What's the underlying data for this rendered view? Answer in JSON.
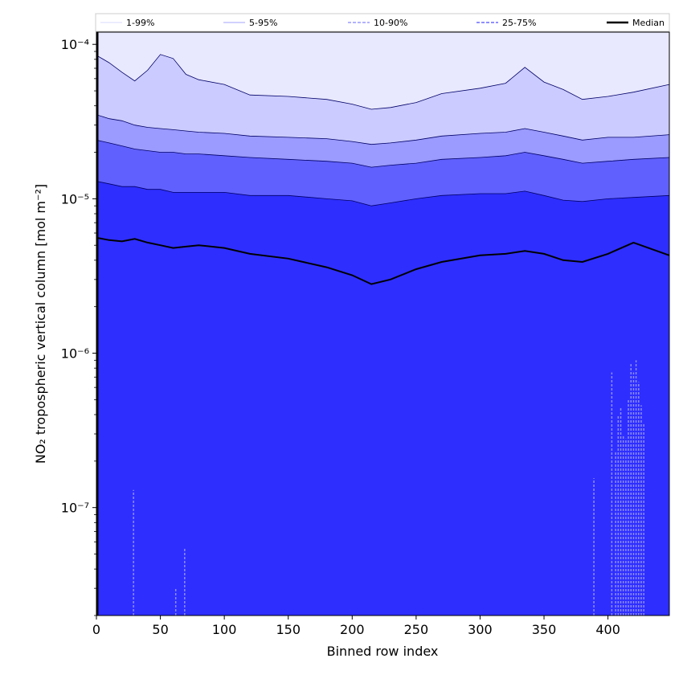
{
  "chart_data": {
    "type": "area",
    "xlabel": "Binned row index",
    "ylabel": "NO₂ tropospheric vertical column [mol m⁻²]",
    "xlim": [
      0,
      448
    ],
    "ylim": [
      2e-08,
      0.00012
    ],
    "yscale": "log",
    "grid": false,
    "legend_position": "top",
    "x_ticks": [
      0,
      50,
      100,
      150,
      200,
      250,
      300,
      350,
      400
    ],
    "x_tick_labels": [
      "0",
      "50",
      "100",
      "150",
      "200",
      "250",
      "300",
      "350",
      "400"
    ],
    "y_ticks": [
      1e-07,
      1e-06,
      1e-05,
      0.0001
    ],
    "y_tick_labels": [
      "10⁻⁷",
      "10⁻⁶",
      "10⁻⁵",
      "10⁻⁴"
    ],
    "legend": [
      {
        "label": "1-99%",
        "color": "#e6e6ff",
        "dash": "solid"
      },
      {
        "label": "5-95%",
        "color": "#c2c2ff",
        "dash": "solid"
      },
      {
        "label": "10-90%",
        "color": "#9898ff",
        "dash": "dashed"
      },
      {
        "label": "25-75%",
        "color": "#6a6aff",
        "dash": "dashed"
      },
      {
        "label": "Median",
        "color": "#000000",
        "dash": "solid"
      }
    ],
    "band_colors": [
      "#cbcbff",
      "#9a9aff",
      "#6060ff",
      "#2e2eff"
    ],
    "x": [
      0,
      10,
      20,
      30,
      40,
      50,
      60,
      70,
      80,
      100,
      120,
      150,
      180,
      200,
      215,
      230,
      250,
      270,
      300,
      320,
      335,
      350,
      365,
      380,
      400,
      420,
      448
    ],
    "series": [
      {
        "name": "1-99%",
        "lower": 2e-08,
        "upper": 0.00012
      },
      {
        "name": "5-95%",
        "upper": [
          8.5e-05,
          7.6e-05,
          6.6e-05,
          5.8e-05,
          6.8e-05,
          8.6e-05,
          8.1e-05,
          6.4e-05,
          5.9e-05,
          5.5e-05,
          4.7e-05,
          4.6e-05,
          4.4e-05,
          4.1e-05,
          3.8e-05,
          3.9e-05,
          4.2e-05,
          4.8e-05,
          5.2e-05,
          5.6e-05,
          7.1e-05,
          5.7e-05,
          5.1e-05,
          4.4e-05,
          4.6e-05,
          4.9e-05,
          5.5e-05
        ]
      },
      {
        "name": "10-90%",
        "upper": [
          3.5e-05,
          3.3e-05,
          3.2e-05,
          3e-05,
          2.9e-05,
          2.85e-05,
          2.8e-05,
          2.75e-05,
          2.7e-05,
          2.65e-05,
          2.55e-05,
          2.5e-05,
          2.45e-05,
          2.35e-05,
          2.25e-05,
          2.3e-05,
          2.4e-05,
          2.55e-05,
          2.65e-05,
          2.7e-05,
          2.85e-05,
          2.7e-05,
          2.55e-05,
          2.4e-05,
          2.5e-05,
          2.5e-05,
          2.6e-05
        ]
      },
      {
        "name": "25-75%",
        "upper": [
          2.4e-05,
          2.3e-05,
          2.2e-05,
          2.1e-05,
          2.05e-05,
          2e-05,
          2e-05,
          1.95e-05,
          1.95e-05,
          1.9e-05,
          1.85e-05,
          1.8e-05,
          1.75e-05,
          1.7e-05,
          1.6e-05,
          1.65e-05,
          1.7e-05,
          1.8e-05,
          1.85e-05,
          1.9e-05,
          2e-05,
          1.9e-05,
          1.8e-05,
          1.7e-05,
          1.75e-05,
          1.8e-05,
          1.85e-05
        ]
      },
      {
        "name": "Median-band",
        "upper": [
          1.3e-05,
          1.25e-05,
          1.2e-05,
          1.2e-05,
          1.15e-05,
          1.15e-05,
          1.1e-05,
          1.1e-05,
          1.1e-05,
          1.1e-05,
          1.05e-05,
          1.05e-05,
          1e-05,
          9.7e-06,
          9e-06,
          9.4e-06,
          1e-05,
          1.05e-05,
          1.08e-05,
          1.08e-05,
          1.12e-05,
          1.05e-05,
          9.8e-06,
          9.6e-06,
          1e-05,
          1.02e-05,
          1.05e-05
        ]
      },
      {
        "name": "Median",
        "values": [
          5.6e-06,
          5.4e-06,
          5.3e-06,
          5.5e-06,
          5.2e-06,
          5e-06,
          4.8e-06,
          4.9e-06,
          5e-06,
          4.8e-06,
          4.4e-06,
          4.1e-06,
          3.6e-06,
          3.2e-06,
          2.8e-06,
          3e-06,
          3.5e-06,
          3.9e-06,
          4.3e-06,
          4.4e-06,
          4.6e-06,
          4.4e-06,
          4e-06,
          3.9e-06,
          4.4e-06,
          5.2e-06,
          4.3e-06
        ]
      }
    ],
    "spikes": [
      {
        "x": 29,
        "top": 1.3e-07
      },
      {
        "x": 62,
        "top": 3e-08
      },
      {
        "x": 69,
        "top": 5.5e-08
      },
      {
        "x": 389,
        "top": 1.55e-07
      },
      {
        "x": 403,
        "top": 7.5e-07
      },
      {
        "x": 406,
        "top": 2.3e-07
      },
      {
        "x": 408,
        "top": 4e-07
      },
      {
        "x": 410,
        "top": 4.5e-07
      },
      {
        "x": 412,
        "top": 2.9e-07
      },
      {
        "x": 414,
        "top": 2.8e-07
      },
      {
        "x": 416,
        "top": 5e-07
      },
      {
        "x": 418,
        "top": 8.5e-07
      },
      {
        "x": 420,
        "top": 7.5e-07
      },
      {
        "x": 422,
        "top": 9e-07
      },
      {
        "x": 424,
        "top": 6.5e-07
      },
      {
        "x": 426,
        "top": 4.6e-07
      },
      {
        "x": 428,
        "top": 3.5e-07
      }
    ]
  }
}
